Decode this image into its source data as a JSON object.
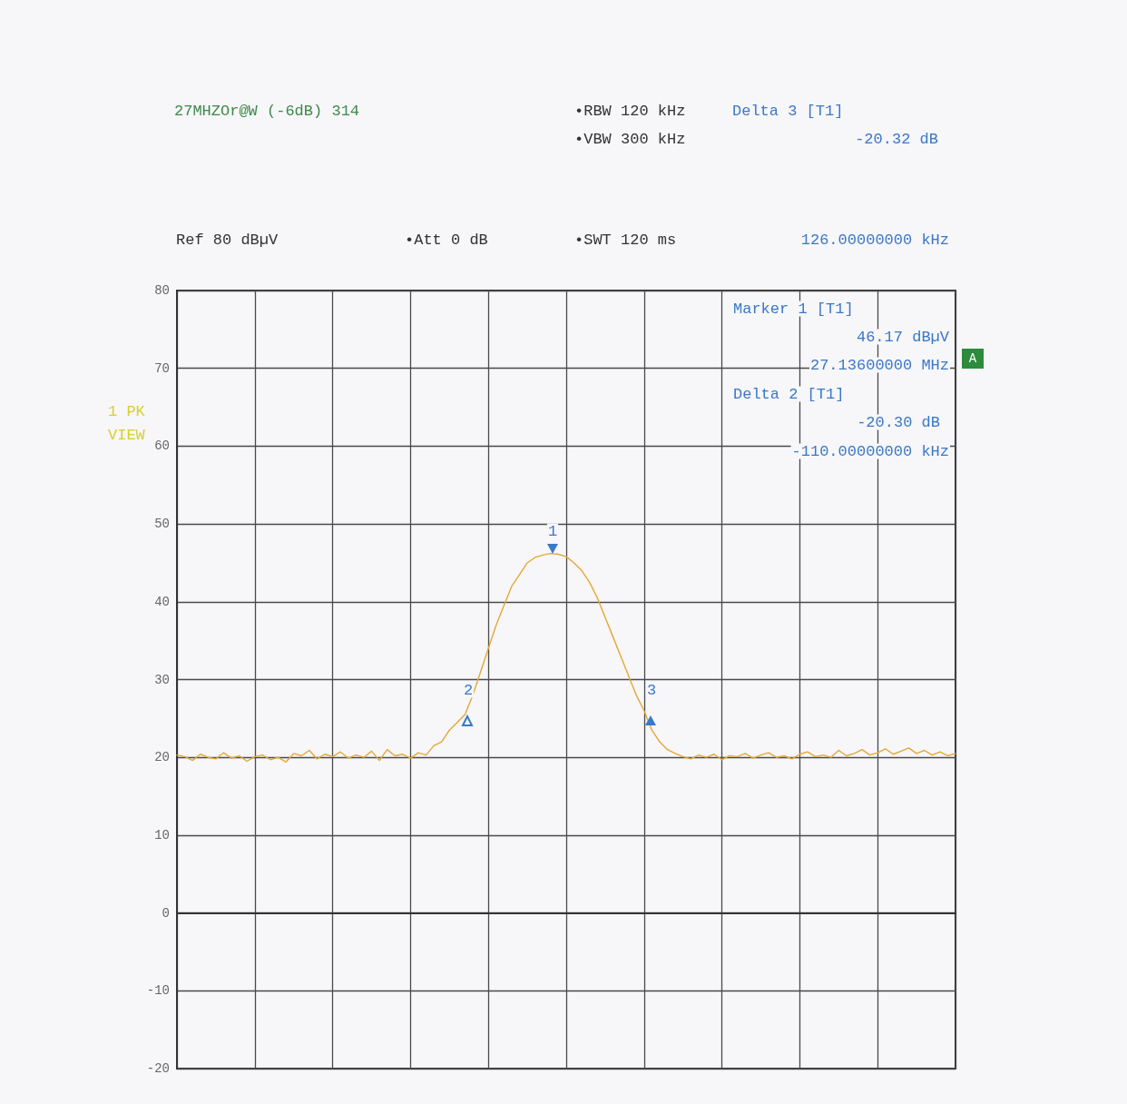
{
  "chart_data": {
    "type": "line",
    "title": "27MHZOr@W (-6dB) 314",
    "annotations": [
      "•RBW 120 kHz",
      "Delta 3 [T1]",
      "•VBW 300 kHz",
      "-20.32 dB",
      "Ref 80 dBµV",
      "•Att 0 dB",
      "•SWT 120 ms",
      "126.00000000 kHz",
      "Marker 1 [T1]",
      "46.17 dBµV",
      "27.13600000 MHz",
      "Delta 2 [T1]",
      "-20.30 dB",
      "-110.00000000 kHz",
      "1 PK",
      "VIEW",
      "A",
      "1",
      "2",
      "3"
    ],
    "categories": [
      null,
      null,
      null,
      null,
      null,
      null,
      null,
      null,
      null,
      null,
      null,
      null,
      null,
      null,
      null,
      null,
      null,
      null,
      null,
      null,
      null,
      null,
      null,
      null,
      null,
      null,
      null,
      null,
      null,
      null,
      null,
      null,
      null,
      null,
      null,
      null,
      null,
      null,
      null,
      null,
      null,
      null,
      null,
      null,
      null,
      null,
      null,
      null,
      null,
      null,
      null,
      null,
      null,
      null,
      null,
      null,
      null,
      null,
      null,
      null,
      null,
      null,
      null,
      null,
      null,
      null,
      null,
      null,
      null,
      null,
      null,
      null,
      null,
      null,
      null,
      null,
      null,
      null,
      null,
      null,
      null,
      null,
      null,
      null,
      null,
      null,
      null,
      null,
      null,
      null,
      null,
      null,
      null,
      null,
      null,
      null,
      null,
      null,
      null,
      null,
      null
    ],
    "series": [
      {
        "color": "#e2a935",
        "values": [
          20.3,
          20.1,
          19.6,
          20.4,
          20.0,
          19.8,
          20.6,
          19.9,
          20.2,
          19.5,
          20.1,
          20.3,
          19.7,
          20.0,
          19.4,
          20.5,
          20.2,
          20.9,
          19.8,
          20.4,
          20.1,
          20.7,
          19.9,
          20.3,
          20.0,
          20.8,
          19.6,
          21.0,
          20.2,
          20.4,
          19.9,
          20.6,
          20.3,
          21.5,
          22,
          23.5,
          24.5,
          25.5,
          28,
          31,
          34,
          37,
          39.5,
          42,
          43.5,
          45,
          45.7,
          46,
          46.2,
          46.1,
          45.8,
          45,
          44,
          42.5,
          40.5,
          38,
          35.5,
          33,
          30.5,
          28,
          26,
          23.5,
          22,
          21,
          20.5,
          20.1,
          19.8,
          20.3,
          20.0,
          20.4,
          19.7,
          20.2,
          20.1,
          20.5,
          19.9,
          20.3,
          20.6,
          20.0,
          20.2,
          19.8,
          20.4,
          20.7,
          20.1,
          20.3,
          20.0,
          20.9,
          20.2,
          20.5,
          21.0,
          20.3,
          20.6,
          21.1,
          20.4,
          20.8,
          21.2,
          20.5,
          20.9,
          20.3,
          20.7,
          20.2,
          20.5
        ]
      }
    ],
    "ylim": [
      -20,
      80
    ],
    "yticks": [
      -20,
      -10,
      0,
      10,
      20,
      30,
      40,
      50,
      60,
      70,
      80
    ],
    "tick_labels": "y",
    "grid": true,
    "line_style": "solid"
  }
}
